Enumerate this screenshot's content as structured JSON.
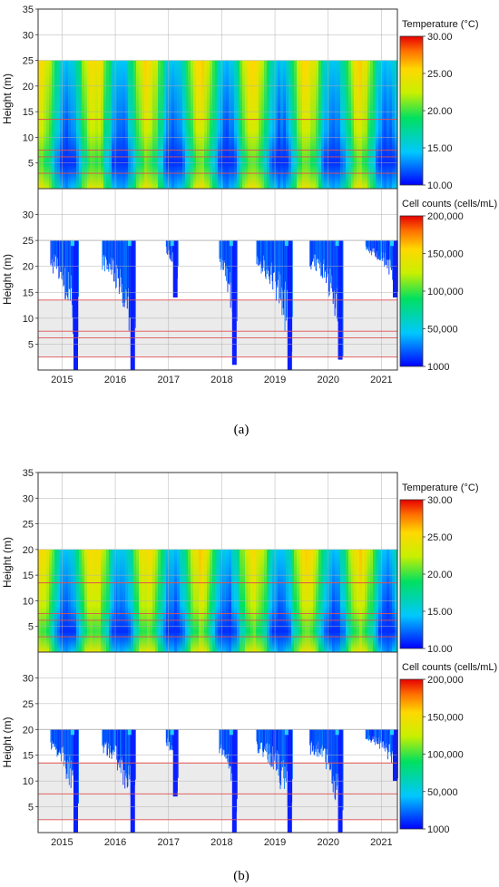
{
  "chart_data": [
    {
      "panel": "(a)",
      "type": "heatmap",
      "name": "temperature",
      "ylabel": "Height (m)",
      "ylim": [
        0,
        35
      ],
      "yticks": [
        5,
        10,
        15,
        20,
        25,
        30,
        35
      ],
      "xticks": [
        "2015",
        "2016",
        "2017",
        "2018",
        "2019",
        "2020",
        "2021"
      ],
      "xlim": [
        2014.55,
        2021.3
      ],
      "surface_height": 25,
      "colorbar": {
        "title": "Temperature (°C)",
        "min": 10,
        "max": 30,
        "ticks": [
          "10.00",
          "15.00",
          "20.00",
          "25.00",
          "30.00"
        ]
      },
      "reference_lines_m": [
        13.5,
        7.5,
        6.2,
        3.0
      ],
      "grid": true
    },
    {
      "panel": "(a)",
      "type": "heatmap",
      "name": "cells",
      "ylabel": "Height (m)",
      "ylim": [
        0,
        35
      ],
      "yticks": [
        5,
        10,
        15,
        20,
        25,
        30
      ],
      "xticks": [
        "2015",
        "2016",
        "2017",
        "2018",
        "2019",
        "2020",
        "2021"
      ],
      "xlim": [
        2014.55,
        2021.3
      ],
      "surface_height": 25,
      "shaded_band_m": [
        2.5,
        13.5
      ],
      "reference_lines_m": [
        13.5,
        7.5,
        6.2,
        2.5
      ],
      "colorbar": {
        "title": "Cell counts (cells/mL)",
        "min": 1000,
        "max": 200000,
        "ticks": [
          "1000",
          "50,000",
          "100,000",
          "150,000",
          "200,000"
        ]
      },
      "blooms": [
        {
          "year": 2015,
          "start": 2014.78,
          "end": 2015.3,
          "min_depth_m": 0
        },
        {
          "year": 2016,
          "start": 2015.75,
          "end": 2016.37,
          "min_depth_m": 0
        },
        {
          "year": 2017,
          "start": 2016.95,
          "end": 2017.17,
          "min_depth_m": 14
        },
        {
          "year": 2018,
          "start": 2017.95,
          "end": 2018.28,
          "min_depth_m": 1
        },
        {
          "year": 2019,
          "start": 2018.65,
          "end": 2019.32,
          "min_depth_m": 0
        },
        {
          "year": 2020,
          "start": 2019.65,
          "end": 2020.27,
          "min_depth_m": 2
        },
        {
          "year": 2021,
          "start": 2020.7,
          "end": 2021.3,
          "min_depth_m": 14
        }
      ],
      "grid": true
    },
    {
      "panel": "(b)",
      "type": "heatmap",
      "name": "temperature",
      "ylabel": "Height (m)",
      "ylim": [
        0,
        35
      ],
      "yticks": [
        5,
        10,
        15,
        20,
        25,
        30,
        35
      ],
      "xticks": [
        "2015",
        "2016",
        "2017",
        "2018",
        "2019",
        "2020",
        "2021"
      ],
      "xlim": [
        2014.55,
        2021.3
      ],
      "surface_height": 20,
      "colorbar": {
        "title": "Temperature (°C)",
        "min": 10,
        "max": 30,
        "ticks": [
          "10.00",
          "15.00",
          "20.00",
          "25.00",
          "30.00"
        ]
      },
      "reference_lines_m": [
        13.5,
        7.5,
        6.2,
        3.0
      ],
      "grid": true
    },
    {
      "panel": "(b)",
      "type": "heatmap",
      "name": "cells",
      "ylabel": "Height (m)",
      "ylim": [
        0,
        35
      ],
      "yticks": [
        5,
        10,
        15,
        20,
        25,
        30
      ],
      "xticks": [
        "2015",
        "2016",
        "2017",
        "2018",
        "2019",
        "2020",
        "2021"
      ],
      "xlim": [
        2014.55,
        2021.3
      ],
      "surface_height": 20,
      "shaded_band_m": [
        2.5,
        13.5
      ],
      "reference_lines_m": [
        13.5,
        7.5,
        2.5
      ],
      "colorbar": {
        "title": "Cell counts (cells/mL)",
        "min": 1000,
        "max": 200000,
        "ticks": [
          "1000",
          "50,000",
          "100,000",
          "150,000",
          "200,000"
        ]
      },
      "blooms": [
        {
          "year": 2015,
          "start": 2014.78,
          "end": 2015.3,
          "min_depth_m": 0
        },
        {
          "year": 2016,
          "start": 2015.75,
          "end": 2016.37,
          "min_depth_m": 0
        },
        {
          "year": 2017,
          "start": 2016.95,
          "end": 2017.17,
          "min_depth_m": 7
        },
        {
          "year": 2018,
          "start": 2017.95,
          "end": 2018.28,
          "min_depth_m": 0
        },
        {
          "year": 2019,
          "start": 2018.65,
          "end": 2019.32,
          "min_depth_m": 0
        },
        {
          "year": 2020,
          "start": 2019.65,
          "end": 2020.27,
          "min_depth_m": 0
        },
        {
          "year": 2021,
          "start": 2020.7,
          "end": 2021.3,
          "min_depth_m": 10
        }
      ],
      "grid": true
    }
  ],
  "captions": {
    "a": "(a)",
    "b": "(b)"
  }
}
